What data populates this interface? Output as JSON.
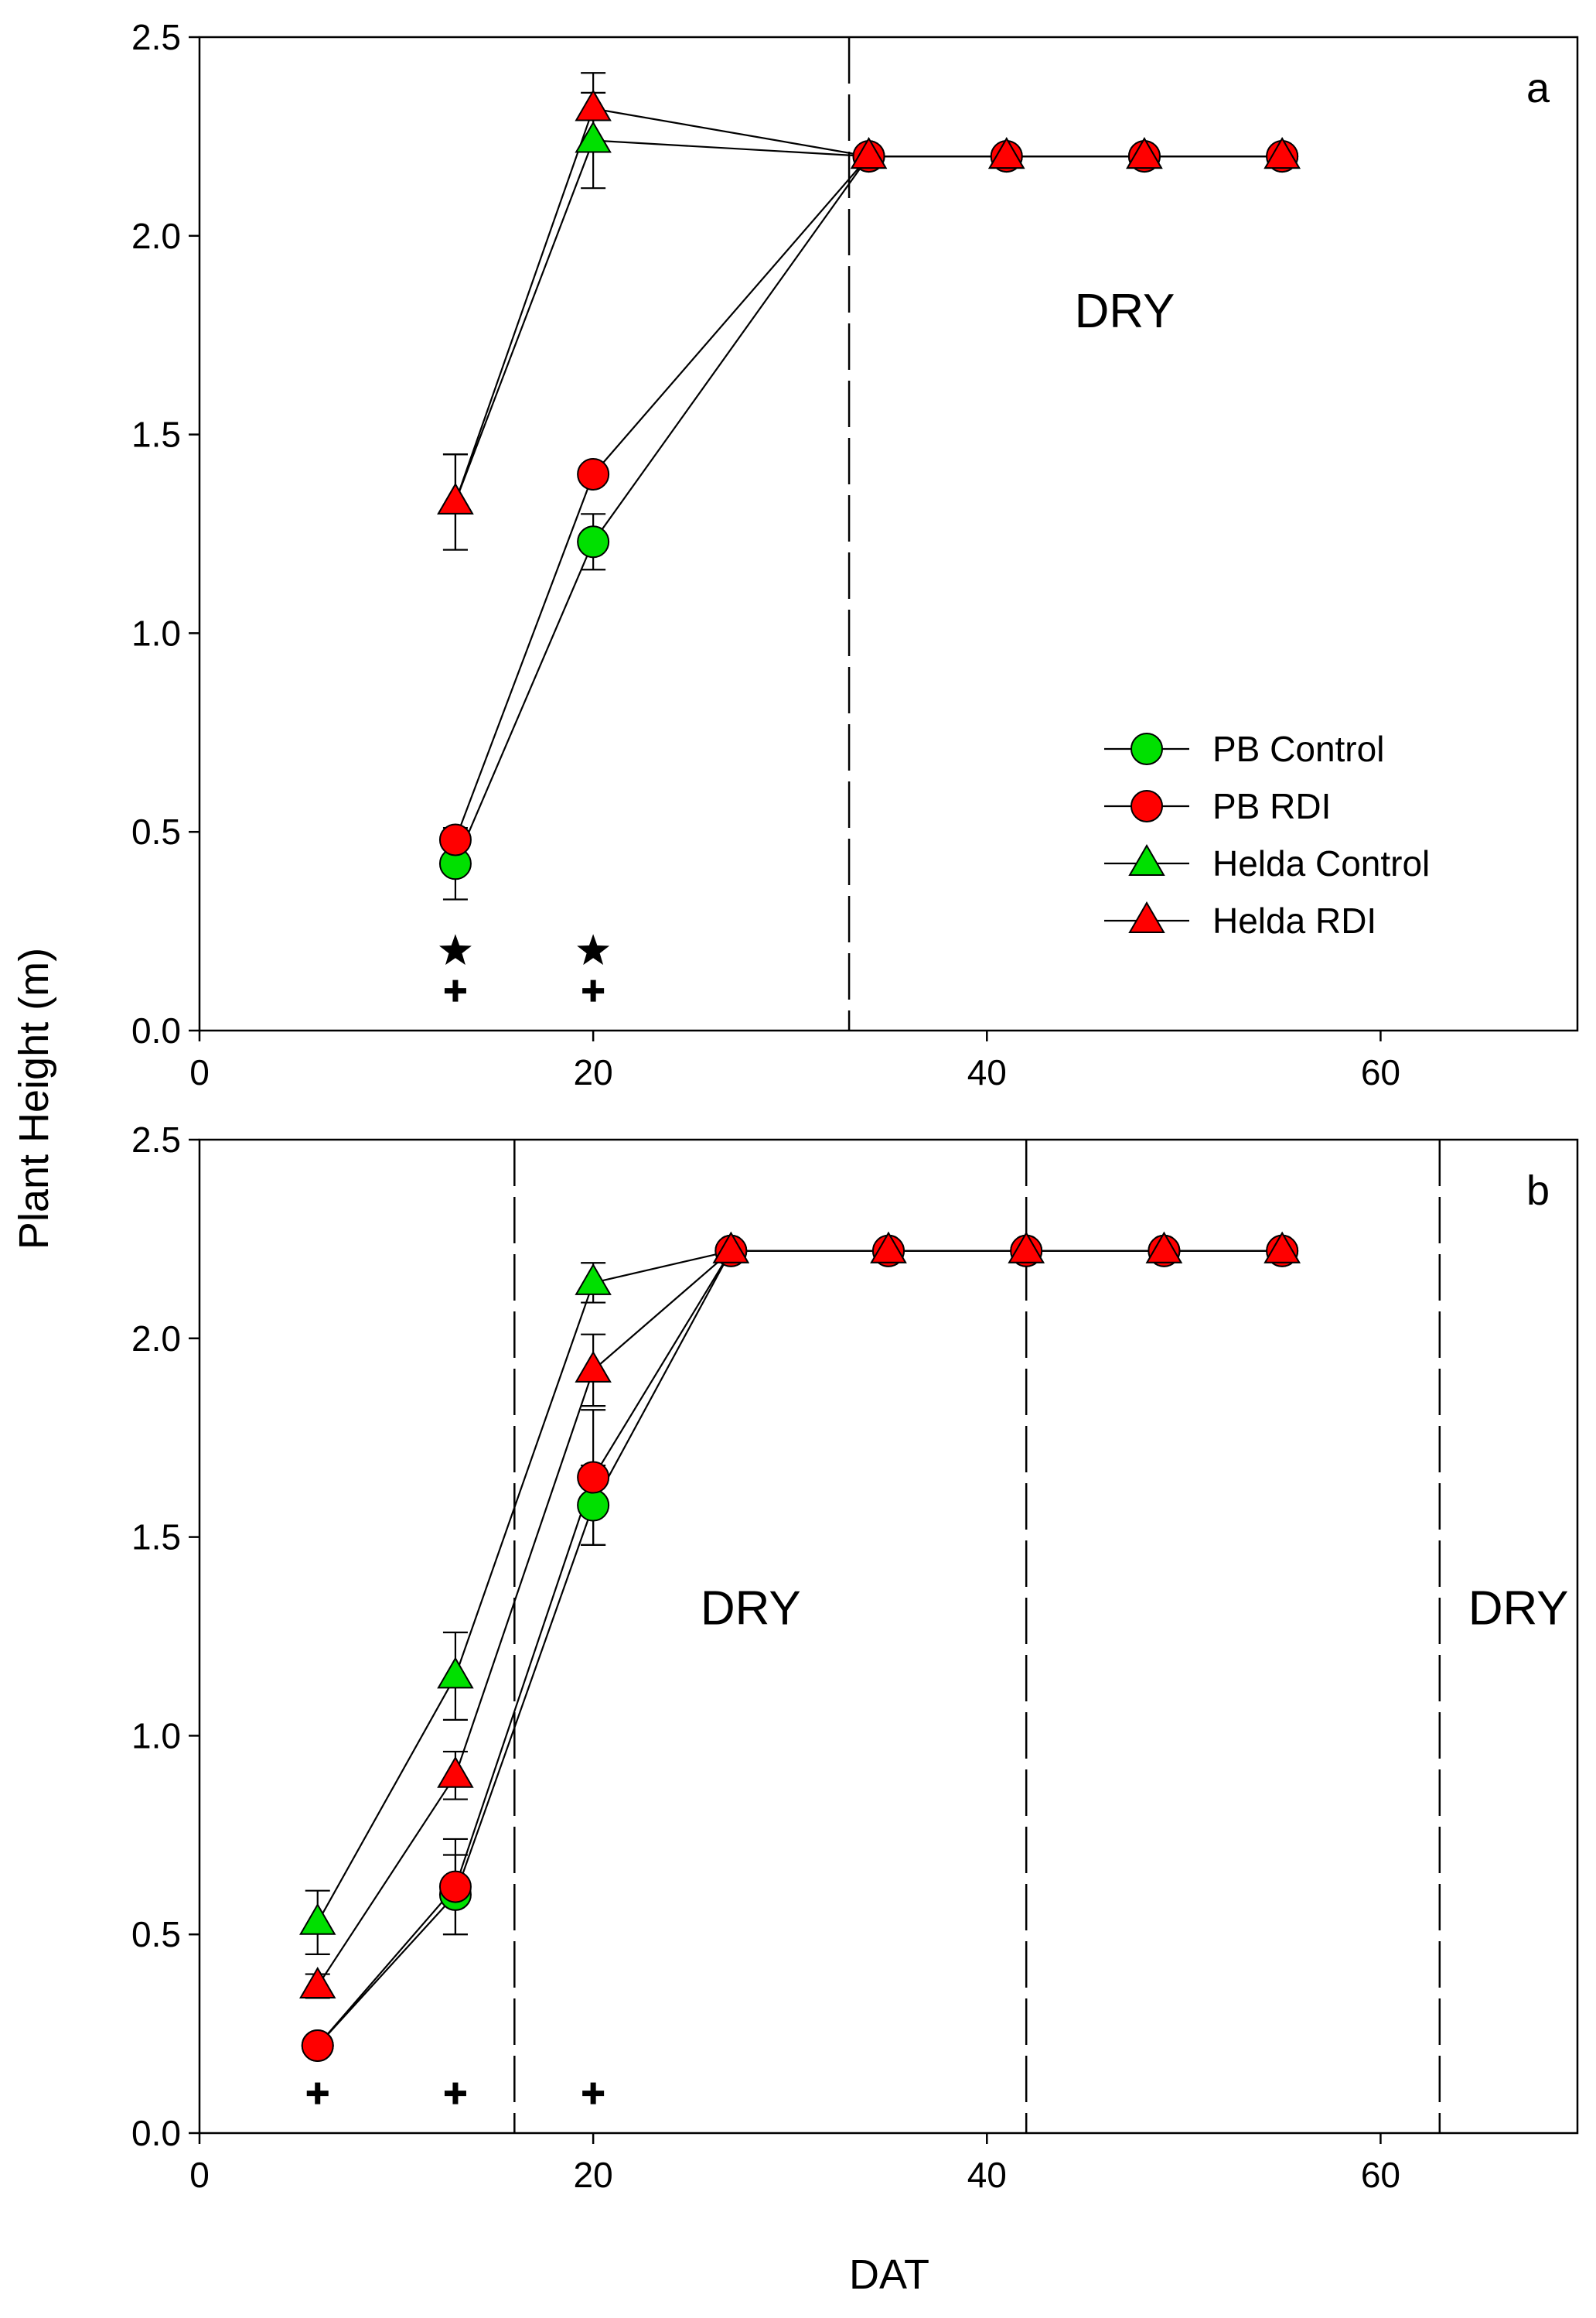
{
  "figure": {
    "ylabel": "Plant Height (m)",
    "xlabel": "DAT"
  },
  "chart_data": [
    {
      "type": "line",
      "panel_label": "a",
      "xlim": [
        0,
        70
      ],
      "ylim": [
        0,
        2.5
      ],
      "x_ticks": [
        0,
        20,
        40,
        60
      ],
      "y_ticks": [
        "0.0",
        "0.5",
        "1.0",
        "1.5",
        "2.0",
        "2.5"
      ],
      "dashed_vlines": [
        33
      ],
      "region_labels": [
        {
          "text": "DRY",
          "x": 47,
          "y": 1.77
        }
      ],
      "significance_markers": [
        {
          "symbol": "★",
          "x": [
            13,
            20
          ],
          "y": 0.2
        },
        {
          "symbol": "+",
          "x": [
            13,
            20
          ],
          "y": 0.1
        }
      ],
      "legend": {
        "position": "lower-right"
      },
      "series": [
        {
          "name": "PB Control",
          "marker": "circle",
          "color": "#00e000",
          "x": [
            13,
            20,
            34,
            41,
            48,
            55
          ],
          "y": [
            0.42,
            1.23,
            2.2,
            2.2,
            2.2,
            2.2
          ],
          "err": [
            0.09,
            0.07,
            0,
            0,
            0,
            0
          ]
        },
        {
          "name": "PB RDI",
          "marker": "circle",
          "color": "#ff0000",
          "x": [
            13,
            20,
            34,
            41,
            48,
            55
          ],
          "y": [
            0.48,
            1.4,
            2.2,
            2.2,
            2.2,
            2.2
          ],
          "err": [
            0.02,
            0.02,
            0,
            0,
            0,
            0
          ]
        },
        {
          "name": "Helda Control",
          "marker": "triangle",
          "color": "#00e000",
          "x": [
            13,
            20,
            34,
            41,
            48,
            55
          ],
          "y": [
            1.33,
            2.24,
            2.2,
            2.2,
            2.2,
            2.2
          ],
          "err": [
            0.12,
            0.12,
            0,
            0,
            0,
            0
          ]
        },
        {
          "name": "Helda RDI",
          "marker": "triangle",
          "color": "#ff0000",
          "x": [
            13,
            20,
            34,
            41,
            48,
            55
          ],
          "y": [
            1.33,
            2.32,
            2.2,
            2.2,
            2.2,
            2.2
          ],
          "err": [
            0.12,
            0.09,
            0,
            0,
            0,
            0
          ]
        }
      ]
    },
    {
      "type": "line",
      "panel_label": "b",
      "xlim": [
        0,
        70
      ],
      "ylim": [
        0,
        2.5
      ],
      "x_ticks": [
        0,
        20,
        40,
        60
      ],
      "y_ticks": [
        "0.0",
        "0.5",
        "1.0",
        "1.5",
        "2.0",
        "2.5"
      ],
      "dashed_vlines": [
        16,
        42,
        63
      ],
      "region_labels": [
        {
          "text": "DRY",
          "x": 28,
          "y": 1.28
        },
        {
          "text": "DRY",
          "x": 67,
          "y": 1.28
        }
      ],
      "significance_markers": [
        {
          "symbol": "+",
          "x": [
            6,
            13,
            20
          ],
          "y": 0.1
        }
      ],
      "series": [
        {
          "name": "PB Control",
          "marker": "circle",
          "color": "#00e000",
          "x": [
            6,
            13,
            20,
            27,
            35,
            42,
            49,
            55
          ],
          "y": [
            0.22,
            0.6,
            1.58,
            2.22,
            2.22,
            2.22,
            2.22,
            2.22
          ],
          "err": [
            0.02,
            0.1,
            0.1,
            0,
            0,
            0,
            0,
            0
          ]
        },
        {
          "name": "PB RDI",
          "marker": "circle",
          "color": "#ff0000",
          "x": [
            6,
            13,
            20,
            27,
            35,
            42,
            49,
            55
          ],
          "y": [
            0.22,
            0.62,
            1.65,
            2.22,
            2.22,
            2.22,
            2.22,
            2.22
          ],
          "err": [
            0.02,
            0.12,
            0.17,
            0,
            0,
            0,
            0,
            0
          ]
        },
        {
          "name": "Helda Control",
          "marker": "triangle",
          "color": "#00e000",
          "x": [
            6,
            13,
            20,
            27,
            35,
            42,
            49,
            55
          ],
          "y": [
            0.53,
            1.15,
            2.14,
            2.22,
            2.22,
            2.22,
            2.22,
            2.22
          ],
          "err": [
            0.08,
            0.11,
            0.05,
            0,
            0,
            0,
            0,
            0
          ]
        },
        {
          "name": "Helda RDI",
          "marker": "triangle",
          "color": "#ff0000",
          "x": [
            6,
            13,
            20,
            27,
            35,
            42,
            49,
            55
          ],
          "y": [
            0.37,
            0.9,
            1.92,
            2.22,
            2.22,
            2.22,
            2.22,
            2.22
          ],
          "err": [
            0.03,
            0.06,
            0.09,
            0,
            0,
            0,
            0,
            0
          ]
        }
      ]
    }
  ]
}
